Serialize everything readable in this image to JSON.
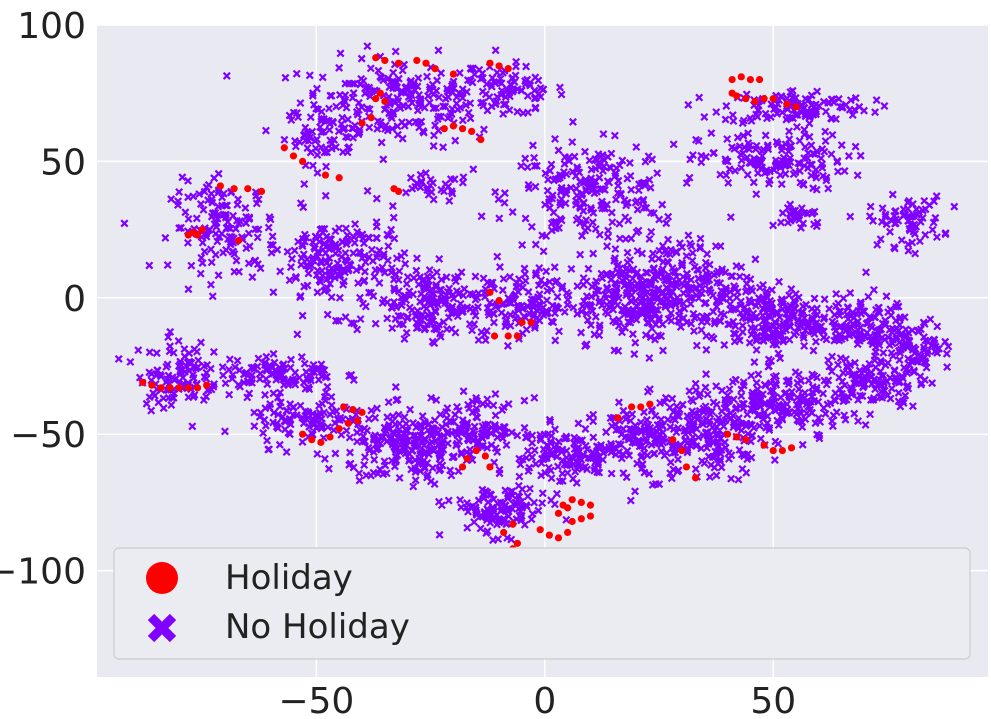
{
  "chart_data": {
    "type": "scatter",
    "title": "",
    "xlabel": "",
    "ylabel": "",
    "xlim": [
      -98,
      97
    ],
    "ylim": [
      -139,
      100
    ],
    "x_ticks": [
      -50,
      0,
      50
    ],
    "x_tick_labels": [
      "−50",
      "0",
      "50"
    ],
    "y_ticks": [
      100,
      50,
      0,
      -50,
      -100
    ],
    "y_tick_labels": [
      "100",
      "50",
      "0",
      "−50",
      "−100"
    ],
    "grid": true,
    "background": "#e9e9f1",
    "legend_position": "lower-left",
    "series": [
      {
        "name": "Holiday",
        "marker": "circle",
        "color": "#ff0000",
        "points": [
          [
            -37,
            88
          ],
          [
            -35,
            87
          ],
          [
            -32,
            86
          ],
          [
            -28,
            87
          ],
          [
            -26,
            86
          ],
          [
            -24,
            84
          ],
          [
            -20,
            82
          ],
          [
            -12,
            86
          ],
          [
            -10,
            85
          ],
          [
            -8,
            84
          ],
          [
            -37,
            73
          ],
          [
            -36,
            75
          ],
          [
            -35,
            72
          ],
          [
            -38,
            66
          ],
          [
            -40,
            64
          ],
          [
            -22,
            62
          ],
          [
            -20,
            63
          ],
          [
            -18,
            62
          ],
          [
            -16,
            61
          ],
          [
            -14,
            58
          ],
          [
            -57,
            55
          ],
          [
            -55,
            52
          ],
          [
            -53,
            50
          ],
          [
            -48,
            45
          ],
          [
            -45,
            44
          ],
          [
            -33,
            40
          ],
          [
            -32,
            39
          ],
          [
            -71,
            41
          ],
          [
            -68,
            40
          ],
          [
            -65,
            40
          ],
          [
            -62,
            39
          ],
          [
            -75,
            25
          ],
          [
            -77,
            24
          ],
          [
            -78,
            23
          ],
          [
            -76,
            23
          ],
          [
            -67,
            21
          ],
          [
            -12,
            2
          ],
          [
            -10,
            -1
          ],
          [
            -11,
            -14
          ],
          [
            -8,
            -14
          ],
          [
            -6,
            -14
          ],
          [
            -5,
            -9
          ],
          [
            -3,
            -9
          ],
          [
            -88,
            -31
          ],
          [
            -86,
            -32
          ],
          [
            -84,
            -33
          ],
          [
            -82,
            -33
          ],
          [
            -80,
            -33
          ],
          [
            -78,
            -33
          ],
          [
            -76,
            -33
          ],
          [
            -74,
            -32
          ],
          [
            -53,
            -50
          ],
          [
            -51,
            -52
          ],
          [
            -49,
            -53
          ],
          [
            -47,
            -51
          ],
          [
            -45,
            -48
          ],
          [
            -43,
            -46
          ],
          [
            -41,
            -45
          ],
          [
            -40,
            -42
          ],
          [
            -42,
            -41
          ],
          [
            -44,
            -40
          ],
          [
            -17,
            -59
          ],
          [
            -15,
            -56
          ],
          [
            -13,
            -58
          ],
          [
            -12,
            -62
          ],
          [
            -18,
            -62
          ],
          [
            -9,
            -86
          ],
          [
            -7,
            -83
          ],
          [
            -6,
            -90
          ],
          [
            -7,
            -92
          ],
          [
            -1,
            -85
          ],
          [
            1,
            -87
          ],
          [
            3,
            -88
          ],
          [
            5,
            -86
          ],
          [
            6,
            -82
          ],
          [
            8,
            -81
          ],
          [
            10,
            -80
          ],
          [
            4,
            -76
          ],
          [
            6,
            -74
          ],
          [
            8,
            -75
          ],
          [
            10,
            -76
          ],
          [
            3,
            -79
          ],
          [
            5,
            -77
          ],
          [
            16,
            -44
          ],
          [
            19,
            -40
          ],
          [
            21,
            -40
          ],
          [
            23,
            -39
          ],
          [
            28,
            -52
          ],
          [
            30,
            -56
          ],
          [
            31,
            -62
          ],
          [
            33,
            -66
          ],
          [
            40,
            -50
          ],
          [
            42,
            -51
          ],
          [
            44,
            -52
          ],
          [
            48,
            -54
          ],
          [
            50,
            -56
          ],
          [
            52,
            -56
          ],
          [
            54,
            -55
          ],
          [
            41,
            80
          ],
          [
            43,
            81
          ],
          [
            45,
            80
          ],
          [
            47,
            80
          ],
          [
            41,
            75
          ],
          [
            42,
            74
          ],
          [
            44,
            73
          ],
          [
            46,
            72
          ],
          [
            48,
            73
          ],
          [
            50,
            73
          ],
          [
            53,
            71
          ],
          [
            55,
            70
          ]
        ]
      },
      {
        "name": "No Holiday",
        "marker": "x",
        "color": "#8000ff",
        "clusters": [
          {
            "cx": -32,
            "cy": 72,
            "rx": 24,
            "ry": 18,
            "n": 230
          },
          {
            "cx": -48,
            "cy": 60,
            "rx": 10,
            "ry": 12,
            "n": 60
          },
          {
            "cx": -8,
            "cy": 76,
            "rx": 14,
            "ry": 10,
            "n": 80
          },
          {
            "cx": -25,
            "cy": 40,
            "rx": 10,
            "ry": 6,
            "n": 30
          },
          {
            "cx": 10,
            "cy": 38,
            "rx": 20,
            "ry": 20,
            "n": 220
          },
          {
            "cx": 55,
            "cy": 70,
            "rx": 18,
            "ry": 7,
            "n": 120
          },
          {
            "cx": 50,
            "cy": 50,
            "rx": 18,
            "ry": 12,
            "n": 150
          },
          {
            "cx": 56,
            "cy": 30,
            "rx": 6,
            "ry": 6,
            "n": 30
          },
          {
            "cx": 79,
            "cy": 28,
            "rx": 9,
            "ry": 10,
            "n": 70
          },
          {
            "cx": -70,
            "cy": 26,
            "rx": 13,
            "ry": 18,
            "n": 140
          },
          {
            "cx": -45,
            "cy": 13,
            "rx": 16,
            "ry": 20,
            "n": 200
          },
          {
            "cx": -25,
            "cy": -2,
            "rx": 14,
            "ry": 14,
            "n": 170
          },
          {
            "cx": -5,
            "cy": -3,
            "rx": 12,
            "ry": 15,
            "n": 140
          },
          {
            "cx": 18,
            "cy": 0,
            "rx": 12,
            "ry": 18,
            "n": 180
          },
          {
            "cx": 30,
            "cy": 5,
            "rx": 15,
            "ry": 20,
            "n": 220
          },
          {
            "cx": 48,
            "cy": -8,
            "rx": 14,
            "ry": 15,
            "n": 200
          },
          {
            "cx": 68,
            "cy": -10,
            "rx": 14,
            "ry": 12,
            "n": 160
          },
          {
            "cx": 82,
            "cy": -18,
            "rx": 8,
            "ry": 10,
            "n": 70
          },
          {
            "cx": -80,
            "cy": -28,
            "rx": 10,
            "ry": 14,
            "n": 110
          },
          {
            "cx": -58,
            "cy": -28,
            "rx": 14,
            "ry": 8,
            "n": 100
          },
          {
            "cx": -52,
            "cy": -45,
            "rx": 14,
            "ry": 10,
            "n": 110
          },
          {
            "cx": -30,
            "cy": -55,
            "rx": 14,
            "ry": 15,
            "n": 200
          },
          {
            "cx": -15,
            "cy": -48,
            "rx": 12,
            "ry": 12,
            "n": 130
          },
          {
            "cx": -10,
            "cy": -78,
            "rx": 12,
            "ry": 10,
            "n": 120
          },
          {
            "cx": 5,
            "cy": -58,
            "rx": 12,
            "ry": 12,
            "n": 130
          },
          {
            "cx": 22,
            "cy": -52,
            "rx": 12,
            "ry": 15,
            "n": 160
          },
          {
            "cx": 38,
            "cy": -48,
            "rx": 12,
            "ry": 18,
            "n": 180
          },
          {
            "cx": 55,
            "cy": -38,
            "rx": 16,
            "ry": 12,
            "n": 170
          },
          {
            "cx": 72,
            "cy": -30,
            "rx": 12,
            "ry": 10,
            "n": 110
          }
        ]
      }
    ]
  }
}
